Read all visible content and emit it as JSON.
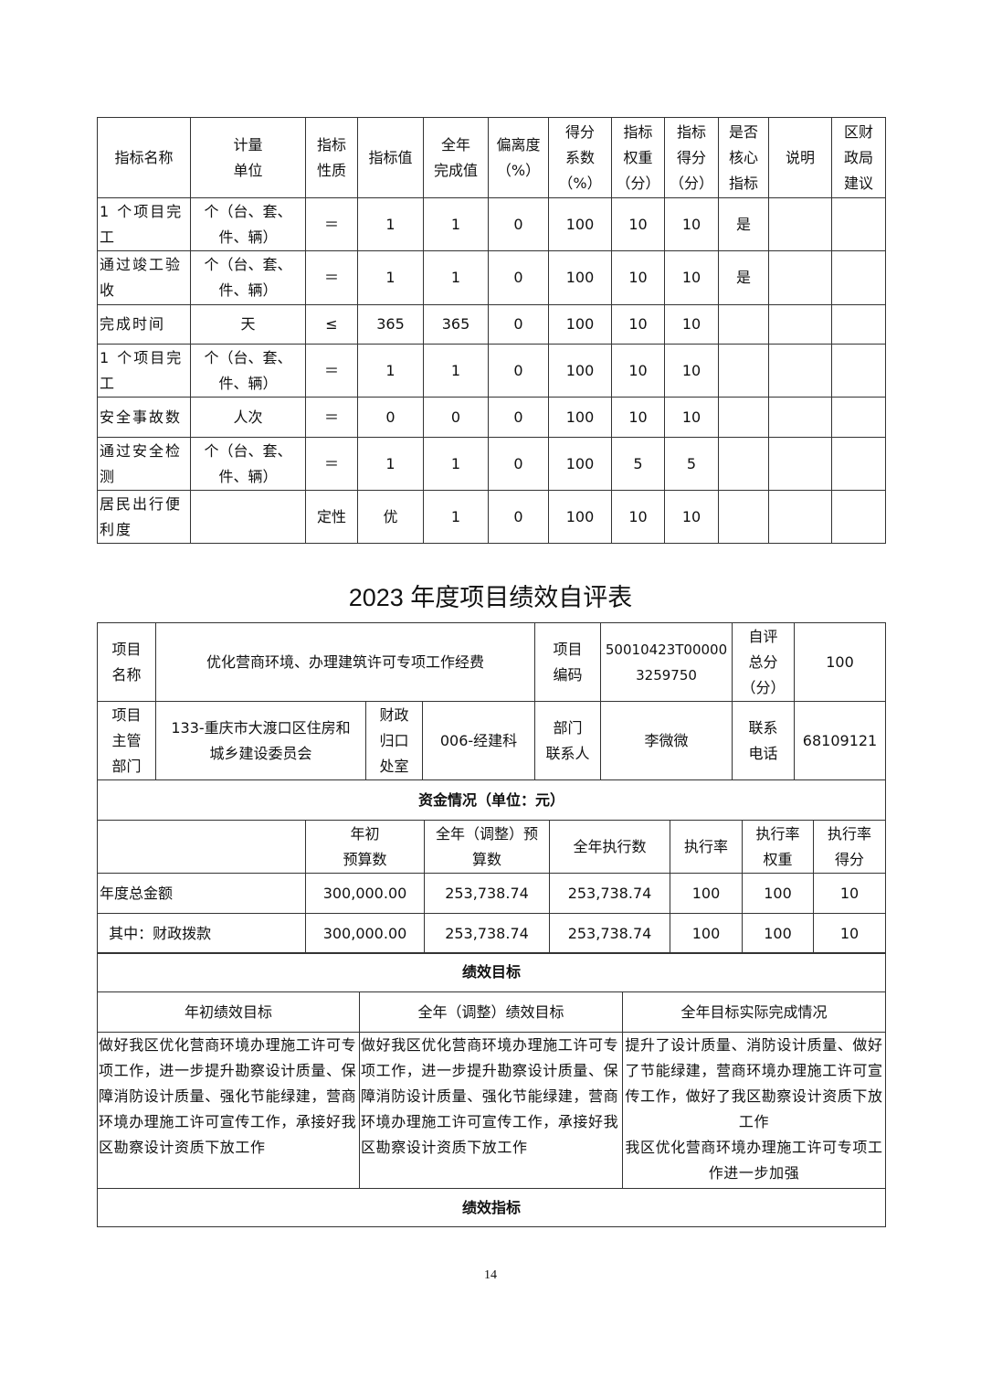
{
  "indicator_table": {
    "headers": [
      "指标名称",
      "计量\n单位",
      "指标\n性质",
      "指标值",
      "全年\n完成值",
      "偏离度\n（%）",
      "得分\n系数\n（%）",
      "指标\n权重\n（分）",
      "指标\n得分\n（分）",
      "是否\n核心\n指标",
      "说明",
      "区财\n政局\n建议"
    ],
    "rows": [
      [
        "1 个项目完工",
        "个（台、套、\n件、辆）",
        "＝",
        "1",
        "1",
        "0",
        "100",
        "10",
        "10",
        "是",
        "",
        ""
      ],
      [
        "通过竣工验收",
        "个（台、套、\n件、辆）",
        "＝",
        "1",
        "1",
        "0",
        "100",
        "10",
        "10",
        "是",
        "",
        ""
      ],
      [
        "完成时间",
        "天",
        "≤",
        "365",
        "365",
        "0",
        "100",
        "10",
        "10",
        "",
        "",
        ""
      ],
      [
        "1 个项目完工",
        "个（台、套、\n件、辆）",
        "＝",
        "1",
        "1",
        "0",
        "100",
        "10",
        "10",
        "",
        "",
        ""
      ],
      [
        "安全事故数",
        "人次",
        "＝",
        "0",
        "0",
        "0",
        "100",
        "10",
        "10",
        "",
        "",
        ""
      ],
      [
        "通过安全检测",
        "个（台、套、\n件、辆）",
        "＝",
        "1",
        "1",
        "0",
        "100",
        "5",
        "5",
        "",
        "",
        ""
      ],
      [
        "居民出行便利度",
        "",
        "定性",
        "优",
        "1",
        "0",
        "100",
        "10",
        "10",
        "",
        "",
        ""
      ]
    ]
  },
  "title": "2023 年度项目绩效自评表",
  "info": {
    "name_label": "项目\n名称",
    "name": "优化营商环境、办理建筑许可专项工作经费",
    "code_label": "项目\n编码",
    "code": "50010423T00000\n3259750",
    "score_label": "自评\n总分\n（分）",
    "score": "100",
    "dept_label": "项目\n主管\n部门",
    "dept": "133-重庆市大渡口区住房和\n城乡建设委员会",
    "office_label": "财政\n归口\n处室",
    "office": "006-经建科",
    "contact_label": "部门\n联系人",
    "contact": "李微微",
    "phone_label": "联系\n电话",
    "phone": "68109121"
  },
  "funds": {
    "heading": "资金情况（单位：元）",
    "headers": [
      "",
      "年初\n预算数",
      "全年（调整）预\n算数",
      "全年执行数",
      "执行率",
      "执行率\n权重",
      "执行率\n得分"
    ],
    "rows": [
      [
        "年度总金额",
        "300,000.00",
        "253,738.74",
        "253,738.74",
        "100",
        "100",
        "10"
      ],
      [
        "  其中：财政拨款",
        "300,000.00",
        "253,738.74",
        "253,738.74",
        "100",
        "100",
        "10"
      ]
    ]
  },
  "goals": {
    "heading": "绩效目标",
    "headers": [
      "年初绩效目标",
      "全年（调整）绩效目标",
      "全年目标实际完成情况"
    ],
    "initial": "做好我区优化营商环境办理施工许可专项工作，进一步提升勘察设计质量、保障消防设计质量、强化节能绿建，营商环境办理施工许可宣传工作，承接好我区勘察设计资质下放工作",
    "adjusted": "做好我区优化营商环境办理施工许可专项工作，进一步提升勘察设计质量、保障消防设计质量、强化节能绿建，营商环境办理施工许可宣传工作，承接好我区勘察设计资质下放工作",
    "actual": "提升了设计质量、消防设计质量、做好了节能绿建，营商环境办理施工许可宣传工作，做好了我区勘察设计资质下放工作\n我区优化营商环境办理施工许可专项工作进一步加强"
  },
  "indicators_heading": "绩效指标",
  "page_number": "14"
}
